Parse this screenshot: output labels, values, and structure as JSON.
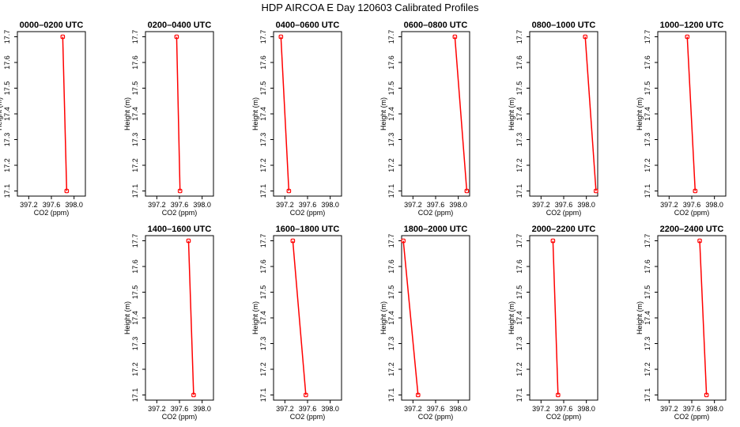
{
  "figure": {
    "title": "HDP AIRCOA E  Day 120603  Calibrated Profiles"
  },
  "chart_data": [
    {
      "type": "line",
      "title": "0000–0200 UTC",
      "xlabel": "CO2 (ppm)",
      "ylabel": "Height (m)",
      "xlim": [
        397.0,
        398.2
      ],
      "ylim": [
        17.08,
        17.72
      ],
      "xticks": [
        "397.2",
        "397.6",
        "398.0"
      ],
      "yticks": [
        "17.1",
        "17.2",
        "17.3",
        "17.4",
        "17.5",
        "17.6",
        "17.7"
      ],
      "x": [
        397.8,
        397.87
      ],
      "y": [
        17.7,
        17.1
      ],
      "color": "#ff0000"
    },
    {
      "type": "line",
      "title": "0200–0400 UTC",
      "xlabel": "CO2 (ppm)",
      "ylabel": "Height (m)",
      "xlim": [
        397.0,
        398.2
      ],
      "ylim": [
        17.08,
        17.72
      ],
      "xticks": [
        "397.2",
        "397.6",
        "398.0"
      ],
      "yticks": [
        "17.1",
        "17.2",
        "17.3",
        "17.4",
        "17.5",
        "17.6",
        "17.7"
      ],
      "x": [
        397.55,
        397.61
      ],
      "y": [
        17.7,
        17.1
      ],
      "color": "#ff0000"
    },
    {
      "type": "line",
      "title": "0400–0600 UTC",
      "xlabel": "CO2 (ppm)",
      "ylabel": "Height (m)",
      "xlim": [
        397.0,
        398.2
      ],
      "ylim": [
        17.08,
        17.72
      ],
      "xticks": [
        "397.2",
        "397.6",
        "398.0"
      ],
      "yticks": [
        "17.1",
        "17.2",
        "17.3",
        "17.4",
        "17.5",
        "17.6",
        "17.7"
      ],
      "x": [
        397.13,
        397.27
      ],
      "y": [
        17.7,
        17.1
      ],
      "color": "#ff0000"
    },
    {
      "type": "line",
      "title": "0600–0800 UTC",
      "xlabel": "CO2 (ppm)",
      "ylabel": "Height (m)",
      "xlim": [
        397.0,
        398.2
      ],
      "ylim": [
        17.08,
        17.72
      ],
      "xticks": [
        "397.2",
        "397.6",
        "398.0"
      ],
      "yticks": [
        "17.1",
        "17.2",
        "17.3",
        "17.4",
        "17.5",
        "17.6",
        "17.7"
      ],
      "x": [
        397.94,
        398.15
      ],
      "y": [
        17.7,
        17.1
      ],
      "color": "#ff0000"
    },
    {
      "type": "line",
      "title": "0800–1000 UTC",
      "xlabel": "CO2 (ppm)",
      "ylabel": "Height (m)",
      "xlim": [
        397.0,
        398.2
      ],
      "ylim": [
        17.08,
        17.72
      ],
      "xticks": [
        "397.2",
        "397.6",
        "398.0"
      ],
      "yticks": [
        "17.1",
        "17.2",
        "17.3",
        "17.4",
        "17.5",
        "17.6",
        "17.7"
      ],
      "x": [
        397.98,
        398.17
      ],
      "y": [
        17.7,
        17.1
      ],
      "color": "#ff0000"
    },
    {
      "type": "line",
      "title": "1000–1200 UTC",
      "xlabel": "CO2 (ppm)",
      "ylabel": "Height (m)",
      "xlim": [
        397.0,
        398.2
      ],
      "ylim": [
        17.08,
        17.72
      ],
      "xticks": [
        "397.2",
        "397.6",
        "398.0"
      ],
      "yticks": [
        "17.1",
        "17.2",
        "17.3",
        "17.4",
        "17.5",
        "17.6",
        "17.7"
      ],
      "x": [
        397.52,
        397.66
      ],
      "y": [
        17.7,
        17.1
      ],
      "color": "#ff0000"
    },
    {
      "type": "line",
      "title": "1400–1600 UTC",
      "xlabel": "CO2 (ppm)",
      "ylabel": "Height (m)",
      "xlim": [
        397.0,
        398.2
      ],
      "ylim": [
        17.08,
        17.72
      ],
      "xticks": [
        "397.2",
        "397.6",
        "398.0"
      ],
      "yticks": [
        "17.1",
        "17.2",
        "17.3",
        "17.4",
        "17.5",
        "17.6",
        "17.7"
      ],
      "x": [
        397.76,
        397.85
      ],
      "y": [
        17.7,
        17.1
      ],
      "color": "#ff0000"
    },
    {
      "type": "line",
      "title": "1600–1800 UTC",
      "xlabel": "CO2 (ppm)",
      "ylabel": "Height (m)",
      "xlim": [
        397.0,
        398.2
      ],
      "ylim": [
        17.08,
        17.72
      ],
      "xticks": [
        "397.2",
        "397.6",
        "398.0"
      ],
      "yticks": [
        "17.1",
        "17.2",
        "17.3",
        "17.4",
        "17.5",
        "17.6",
        "17.7"
      ],
      "x": [
        397.34,
        397.57
      ],
      "y": [
        17.7,
        17.1
      ],
      "color": "#ff0000"
    },
    {
      "type": "line",
      "title": "1800–2000 UTC",
      "xlabel": "CO2 (ppm)",
      "ylabel": "Height (m)",
      "xlim": [
        397.0,
        398.2
      ],
      "ylim": [
        17.08,
        17.72
      ],
      "xticks": [
        "397.2",
        "397.6",
        "398.0"
      ],
      "yticks": [
        "17.1",
        "17.2",
        "17.3",
        "17.4",
        "17.5",
        "17.6",
        "17.7"
      ],
      "x": [
        397.03,
        397.29
      ],
      "y": [
        17.7,
        17.1
      ],
      "color": "#ff0000"
    },
    {
      "type": "line",
      "title": "2000–2200 UTC",
      "xlabel": "CO2 (ppm)",
      "ylabel": "Height (m)",
      "xlim": [
        397.0,
        398.2
      ],
      "ylim": [
        17.08,
        17.72
      ],
      "xticks": [
        "397.2",
        "397.6",
        "398.0"
      ],
      "yticks": [
        "17.1",
        "17.2",
        "17.3",
        "17.4",
        "17.5",
        "17.6",
        "17.7"
      ],
      "x": [
        397.41,
        397.5
      ],
      "y": [
        17.7,
        17.1
      ],
      "color": "#ff0000"
    },
    {
      "type": "line",
      "title": "2200–2400 UTC",
      "xlabel": "CO2 (ppm)",
      "ylabel": "Height (m)",
      "xlim": [
        397.0,
        398.2
      ],
      "ylim": [
        17.08,
        17.72
      ],
      "xticks": [
        "397.2",
        "397.6",
        "398.0"
      ],
      "yticks": [
        "17.1",
        "17.2",
        "17.3",
        "17.4",
        "17.5",
        "17.6",
        "17.7"
      ],
      "x": [
        397.74,
        397.86
      ],
      "y": [
        17.7,
        17.1
      ],
      "color": "#ff0000"
    }
  ]
}
